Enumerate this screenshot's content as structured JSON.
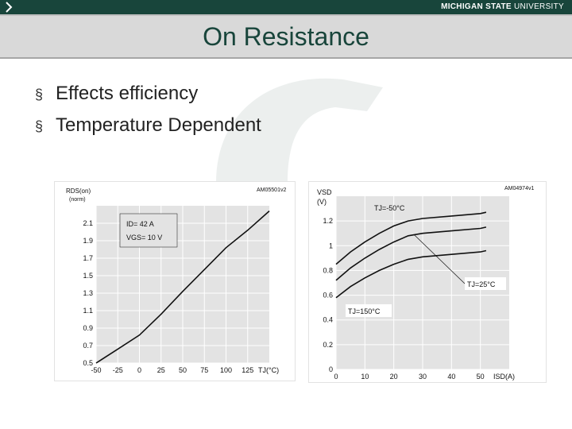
{
  "header": {
    "brand_bold": "MICHIGAN STATE",
    "brand_light": " UNIVERSITY",
    "nav_icon": "chevron-right-icon"
  },
  "slide": {
    "title": "On Resistance",
    "bullet_marker": "§",
    "bullets": [
      "Effects efficiency",
      "Temperature Dependent"
    ]
  },
  "colors": {
    "msu_green": "#18453b",
    "title_band": "#d9d9d9",
    "plot_bg": "#e3e3e3",
    "gridline": "#ffffff",
    "curve": "#111111"
  },
  "chart_data": [
    {
      "type": "line",
      "code": "AM05501v2",
      "ylabel": "RDS(on)",
      "yunit": "(norm)",
      "xlabel": "TJ(°C)",
      "xlim": [
        -50,
        150
      ],
      "ylim": [
        0.5,
        2.3
      ],
      "xticks": [
        -50,
        -25,
        0,
        25,
        50,
        75,
        100,
        125
      ],
      "yticks": [
        0.5,
        0.7,
        0.9,
        1.1,
        1.3,
        1.5,
        1.7,
        1.9,
        2.1
      ],
      "annotations": [
        "ID= 42 A",
        "VGS= 10 V"
      ],
      "grid": true,
      "series": [
        {
          "x": [
            -50,
            -25,
            0,
            25,
            50,
            75,
            100,
            125,
            150
          ],
          "y": [
            0.5,
            0.66,
            0.82,
            1.06,
            1.32,
            1.57,
            1.82,
            2.02,
            2.24
          ]
        }
      ]
    },
    {
      "type": "line",
      "code": "AM04974v1",
      "ylabel": "VSD",
      "yunit": "(V)",
      "xlabel": "ISD(A)",
      "xlim": [
        0,
        60
      ],
      "ylim": [
        0,
        1.4
      ],
      "xticks": [
        0,
        10,
        20,
        30,
        40,
        50
      ],
      "yticks": [
        0,
        0.2,
        0.4,
        0.6,
        0.8,
        1.0,
        1.2
      ],
      "grid": true,
      "series": [
        {
          "name": "TJ=-50°C",
          "x": [
            0,
            5,
            10,
            15,
            20,
            25,
            30,
            40,
            50,
            52
          ],
          "y": [
            0.85,
            0.95,
            1.03,
            1.1,
            1.16,
            1.2,
            1.22,
            1.24,
            1.26,
            1.27
          ]
        },
        {
          "name": "TJ=25°C",
          "x": [
            0,
            5,
            10,
            15,
            20,
            25,
            30,
            40,
            50,
            52
          ],
          "y": [
            0.72,
            0.82,
            0.9,
            0.97,
            1.03,
            1.08,
            1.1,
            1.12,
            1.14,
            1.15
          ]
        },
        {
          "name": "TJ=150°C",
          "x": [
            0,
            5,
            10,
            15,
            20,
            25,
            30,
            40,
            50,
            52
          ],
          "y": [
            0.58,
            0.67,
            0.74,
            0.8,
            0.85,
            0.89,
            0.91,
            0.93,
            0.95,
            0.96
          ]
        }
      ]
    }
  ]
}
